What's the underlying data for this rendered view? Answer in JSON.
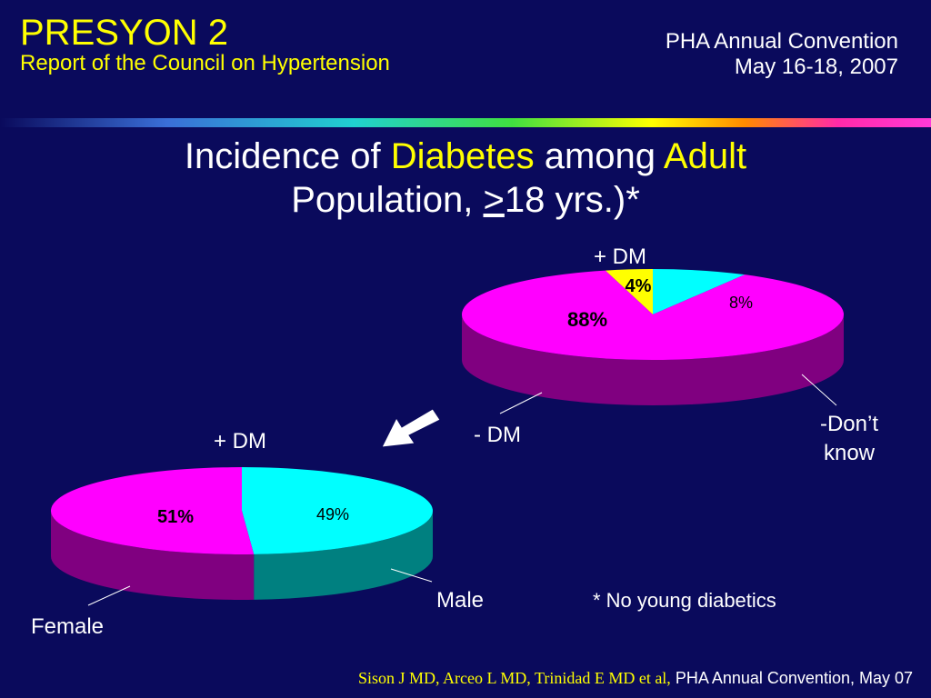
{
  "header": {
    "title": "PRESYON 2",
    "subtitle": "Report of the Council on Hypertension",
    "event_line1": "PHA Annual Convention",
    "event_line2": "May 16-18, 2007"
  },
  "slide_title": {
    "part1": "Incidence of ",
    "part2": "Diabetes",
    "part3": " among ",
    "part4": "Adult",
    "line2_a": "Population, ",
    "line2_b": ">",
    "line2_c": "18 yrs.)*"
  },
  "chart_data": [
    {
      "type": "pie",
      "title": "",
      "slices": [
        {
          "label": "+ DM",
          "value": 4,
          "value_label": "4%",
          "color": "#ffff00"
        },
        {
          "label": "-Don’t know",
          "value": 8,
          "value_label": "8%",
          "color": "#00ffff"
        },
        {
          "label": "- DM",
          "value": 88,
          "value_label": "88%",
          "color": "#ff00ff"
        }
      ]
    },
    {
      "type": "pie",
      "title": "+ DM",
      "slices": [
        {
          "label": "Male",
          "value": 49,
          "value_label": "49%",
          "color": "#00ffff"
        },
        {
          "label": "Female",
          "value": 51,
          "value_label": "51%",
          "color": "#ff00ff"
        }
      ]
    }
  ],
  "footnote": "* No young diabetics",
  "citation": {
    "authors": "Sison J MD, Arceo L MD, Trinidad E MD et al,",
    "event": "PHA Annual Convention, May 07"
  },
  "colors": {
    "background": "#0a0a5c",
    "accent_yellow": "#ffff00",
    "cyan": "#00ffff",
    "magenta": "#ff00ff"
  }
}
